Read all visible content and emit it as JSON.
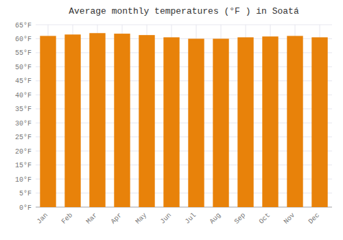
{
  "chart_data": {
    "type": "bar",
    "title": "Average monthly temperatures (°F ) in Soatá",
    "categories": [
      "Jan",
      "Feb",
      "Mar",
      "Apr",
      "May",
      "Jun",
      "Jul",
      "Aug",
      "Sep",
      "Oct",
      "Nov",
      "Dec"
    ],
    "values": [
      61,
      61.5,
      62,
      61.8,
      61.3,
      60.5,
      60,
      60,
      60.5,
      60.8,
      61,
      60.5
    ],
    "color": "#E8820A",
    "ylim": [
      0,
      65
    ],
    "yticks": [
      {
        "value": 0,
        "label": "0°F"
      },
      {
        "value": 5,
        "label": "5°F"
      },
      {
        "value": 10,
        "label": "10°F"
      },
      {
        "value": 15,
        "label": "15°F"
      },
      {
        "value": 20,
        "label": "20°F"
      },
      {
        "value": 25,
        "label": "25°F"
      },
      {
        "value": 30,
        "label": "30°F"
      },
      {
        "value": 35,
        "label": "35°F"
      },
      {
        "value": 40,
        "label": "40°F"
      },
      {
        "value": 45,
        "label": "45°F"
      },
      {
        "value": 50,
        "label": "50°F"
      },
      {
        "value": 55,
        "label": "55°F"
      },
      {
        "value": 60,
        "label": "60°F"
      },
      {
        "value": 65,
        "label": "65°F"
      }
    ],
    "grid": true
  }
}
